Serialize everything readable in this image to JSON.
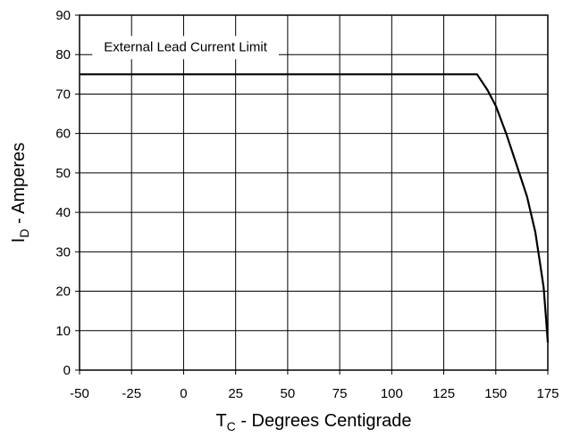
{
  "chart_data": {
    "type": "line",
    "xlabel": {
      "main": "T",
      "sub": "C",
      "rest": " - Degrees Centigrade"
    },
    "ylabel": {
      "main": "I",
      "sub": "D",
      "rest": " - Amperes"
    },
    "xlim": [
      -50,
      175
    ],
    "ylim": [
      0,
      90
    ],
    "xticks": [
      -50,
      -25,
      0,
      25,
      50,
      75,
      100,
      125,
      150,
      175
    ],
    "yticks": [
      0,
      10,
      20,
      30,
      40,
      50,
      60,
      70,
      80,
      90
    ],
    "grid": true,
    "annotation": {
      "text": "External Lead Current Limit",
      "x": -40,
      "y": 82
    },
    "series": [
      {
        "x": [
          -50,
          141,
          146,
          150,
          155,
          160,
          165,
          169,
          171,
          173,
          174,
          175
        ],
        "y": [
          75,
          75,
          71,
          67,
          60,
          52,
          44,
          35,
          28,
          21,
          14,
          7
        ]
      }
    ]
  }
}
